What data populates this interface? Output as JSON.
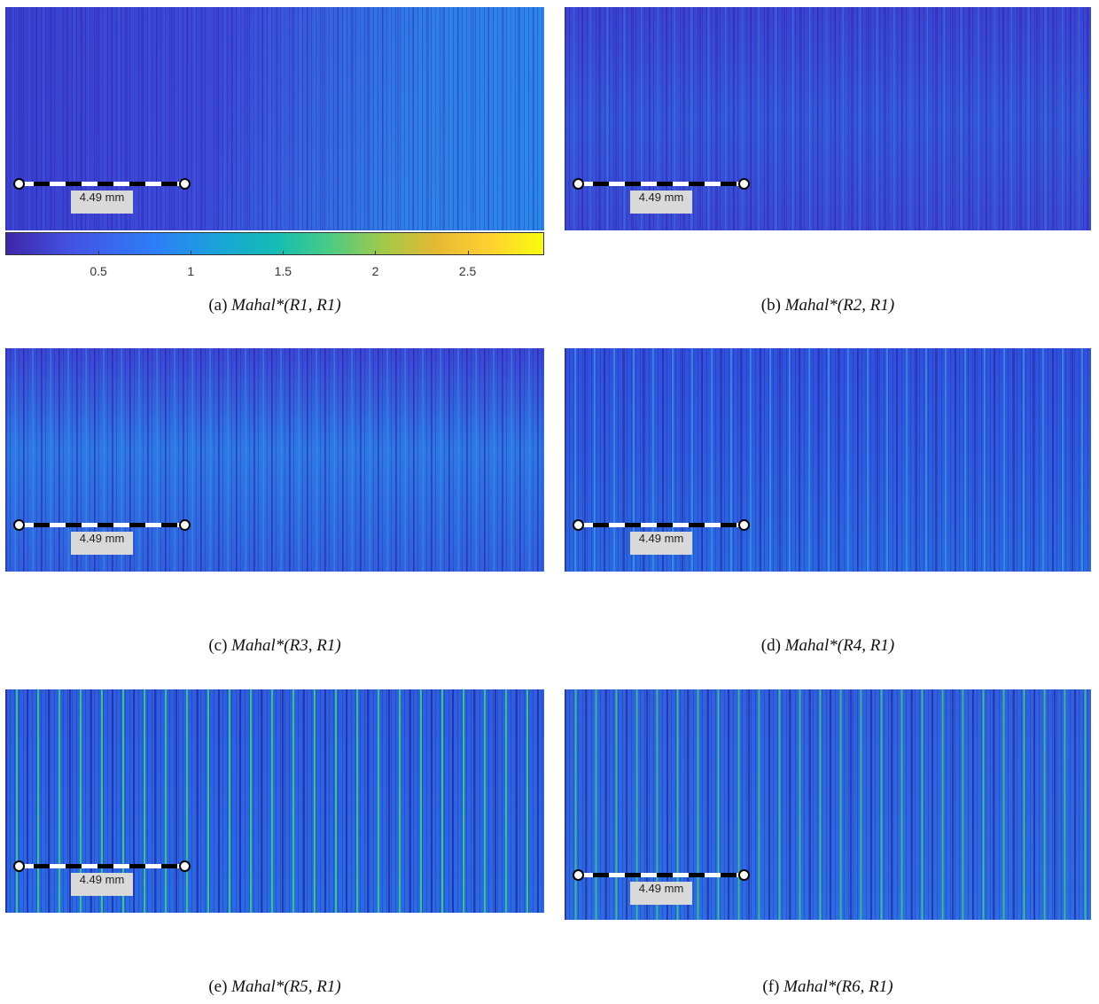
{
  "colorbar": {
    "lim": [
      0,
      2.91
    ],
    "ticks": [
      0.5,
      1,
      1.5,
      2,
      2.5
    ]
  },
  "panels": [
    {
      "label": "(a)",
      "caption": "Mahal*(R1, R1)",
      "scale_bar": "4.49 mm"
    },
    {
      "label": "(b)",
      "caption": "Mahal*(R2, R1)",
      "scale_bar": "4.49 mm"
    },
    {
      "label": "(c)",
      "caption": "Mahal*(R3, R1)",
      "scale_bar": "4.49 mm"
    },
    {
      "label": "(d)",
      "caption": "Mahal*(R4, R1)",
      "scale_bar": "4.49 mm"
    },
    {
      "label": "(e)",
      "caption": "Mahal*(R5, R1)",
      "scale_bar": "4.49 mm"
    },
    {
      "label": "(f)",
      "caption": "Mahal*(R6, R1)",
      "scale_bar": "4.49 mm"
    }
  ]
}
